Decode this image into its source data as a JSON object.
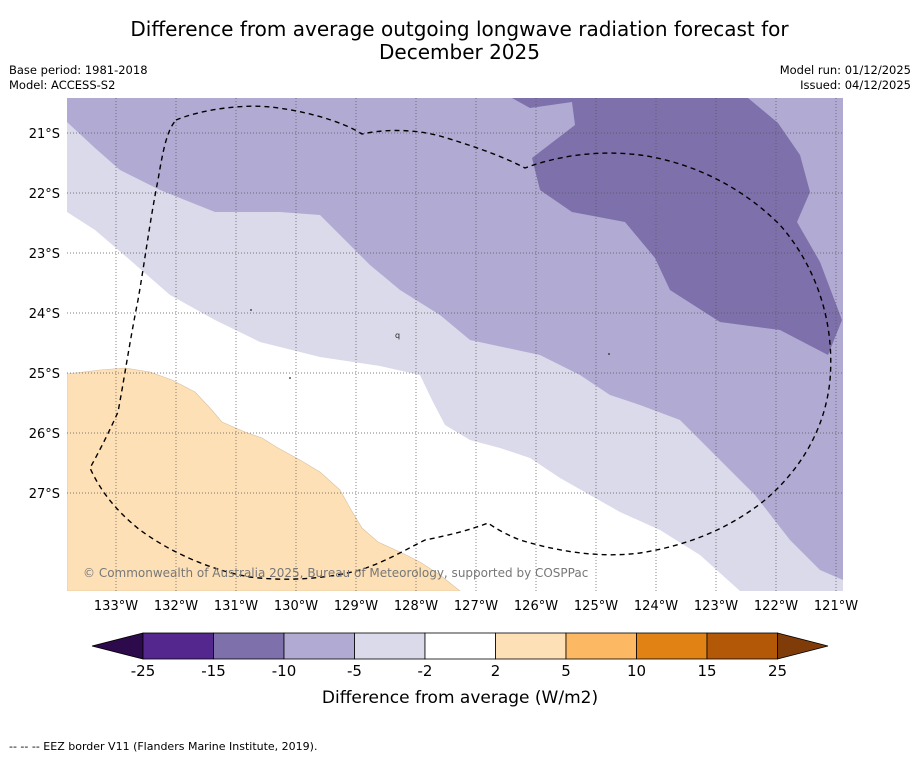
{
  "title_line1": "Difference from average outgoing longwave radiation forecast for",
  "title_line2": "December 2025",
  "meta": {
    "base_period": "Base period: 1981-2018",
    "model": "Model: ACCESS-S2",
    "model_run": "Model run: 01/12/2025",
    "issued": "Issued: 04/12/2025"
  },
  "map": {
    "lat_labels": [
      "21°S",
      "22°S",
      "23°S",
      "24°S",
      "25°S",
      "26°S",
      "27°S"
    ],
    "lon_labels": [
      "133°W",
      "132°W",
      "131°W",
      "130°W",
      "129°W",
      "128°W",
      "127°W",
      "126°W",
      "125°W",
      "124°W",
      "123°W",
      "122°W",
      "121°W"
    ],
    "copyright": "© Commonwealth of Australia 2025, Bureau of Meteorology, supported by COSPPac",
    "islet_label": "q"
  },
  "colorbar": {
    "ticks": [
      "-25",
      "-15",
      "-10",
      "-5",
      "-2",
      "2",
      "5",
      "10",
      "15",
      "25"
    ],
    "label": "Difference from average (W/m2)",
    "colors": {
      "under": "#2d0a4b",
      "c1": "#54278f",
      "c2": "#7d70ab",
      "c3": "#b1aad2",
      "c4": "#dadaeb",
      "c5": "#ffffff",
      "c6": "#fee0b6",
      "c7": "#fdb863",
      "c8": "#e08214",
      "c9": "#b35806",
      "over": "#7f3b08"
    }
  },
  "footer": "--  --  -- EEZ border V11 (Flanders Marine Institute, 2019)."
}
